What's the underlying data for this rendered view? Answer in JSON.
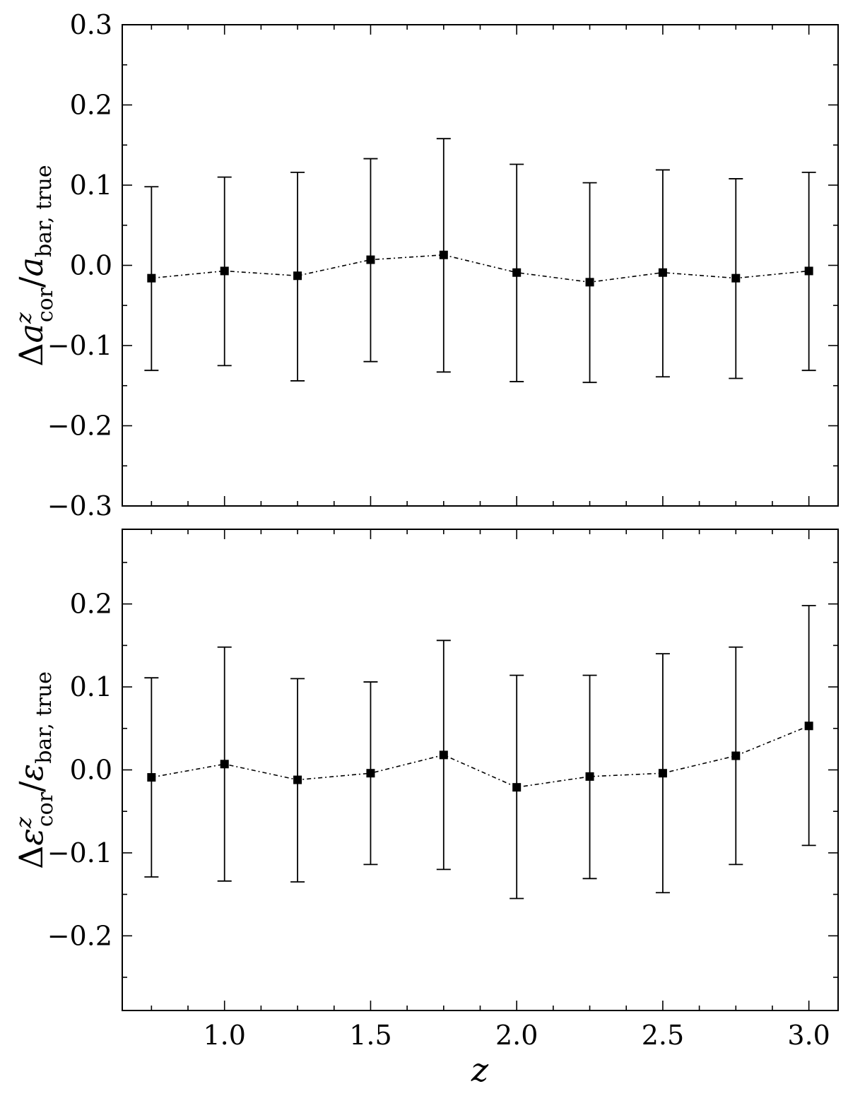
{
  "figure": {
    "xlabel": "z"
  },
  "chart_data": [
    {
      "type": "scatter",
      "panel": "top",
      "ylabel": {
        "delta": "Δ",
        "symbol": "a",
        "sup": "z",
        "sub": "cor",
        "slash": "/",
        "denom_symbol": "a",
        "denom_sub": "bar, true"
      },
      "xlim": [
        0.65,
        3.1
      ],
      "ylim": [
        -0.3,
        0.3
      ],
      "yticks": [
        -0.3,
        -0.2,
        -0.1,
        0.0,
        0.1,
        0.2,
        0.3
      ],
      "ytick_labels": [
        "−0.3",
        "−0.2",
        "−0.1",
        "0.0",
        "0.1",
        "0.2",
        "0.3"
      ],
      "xticks": [
        1.0,
        1.5,
        2.0,
        2.5,
        3.0
      ],
      "xtick_labels": [],
      "line_style": "dash-dot",
      "marker": "square",
      "color": "#000000",
      "x": [
        0.75,
        1.0,
        1.25,
        1.5,
        1.75,
        2.0,
        2.25,
        2.5,
        2.75,
        3.0
      ],
      "y": [
        -0.016,
        -0.007,
        -0.013,
        0.007,
        0.013,
        -0.009,
        -0.021,
        -0.009,
        -0.016,
        -0.007
      ],
      "err_low": [
        -0.131,
        -0.125,
        -0.144,
        -0.12,
        -0.133,
        -0.145,
        -0.146,
        -0.139,
        -0.141,
        -0.131
      ],
      "err_high": [
        0.098,
        0.11,
        0.116,
        0.133,
        0.158,
        0.126,
        0.103,
        0.119,
        0.108,
        0.116
      ]
    },
    {
      "type": "scatter",
      "panel": "bottom",
      "ylabel": {
        "delta": "Δ",
        "symbol": "ε",
        "sup": "z",
        "sub": "cor",
        "slash": "/",
        "denom_symbol": "ε",
        "denom_sub": "bar, true"
      },
      "xlim": [
        0.65,
        3.1
      ],
      "ylim": [
        -0.29,
        0.29
      ],
      "yticks": [
        -0.2,
        -0.1,
        0.0,
        0.1,
        0.2
      ],
      "ytick_labels": [
        "−0.2",
        "−0.1",
        "0.0",
        "0.1",
        "0.2"
      ],
      "xticks": [
        1.0,
        1.5,
        2.0,
        2.5,
        3.0
      ],
      "xtick_labels": [
        "1.0",
        "1.5",
        "2.0",
        "2.5",
        "3.0"
      ],
      "line_style": "dash-dot",
      "marker": "square",
      "color": "#000000",
      "x": [
        0.75,
        1.0,
        1.25,
        1.5,
        1.75,
        2.0,
        2.25,
        2.5,
        2.75,
        3.0
      ],
      "y": [
        -0.009,
        0.007,
        -0.012,
        -0.004,
        0.018,
        -0.021,
        -0.008,
        -0.004,
        0.017,
        0.053
      ],
      "err_low": [
        -0.129,
        -0.134,
        -0.135,
        -0.114,
        -0.12,
        -0.155,
        -0.131,
        -0.148,
        -0.114,
        -0.091
      ],
      "err_high": [
        0.111,
        0.148,
        0.11,
        0.106,
        0.156,
        0.114,
        0.114,
        0.14,
        0.148,
        0.198
      ]
    }
  ]
}
